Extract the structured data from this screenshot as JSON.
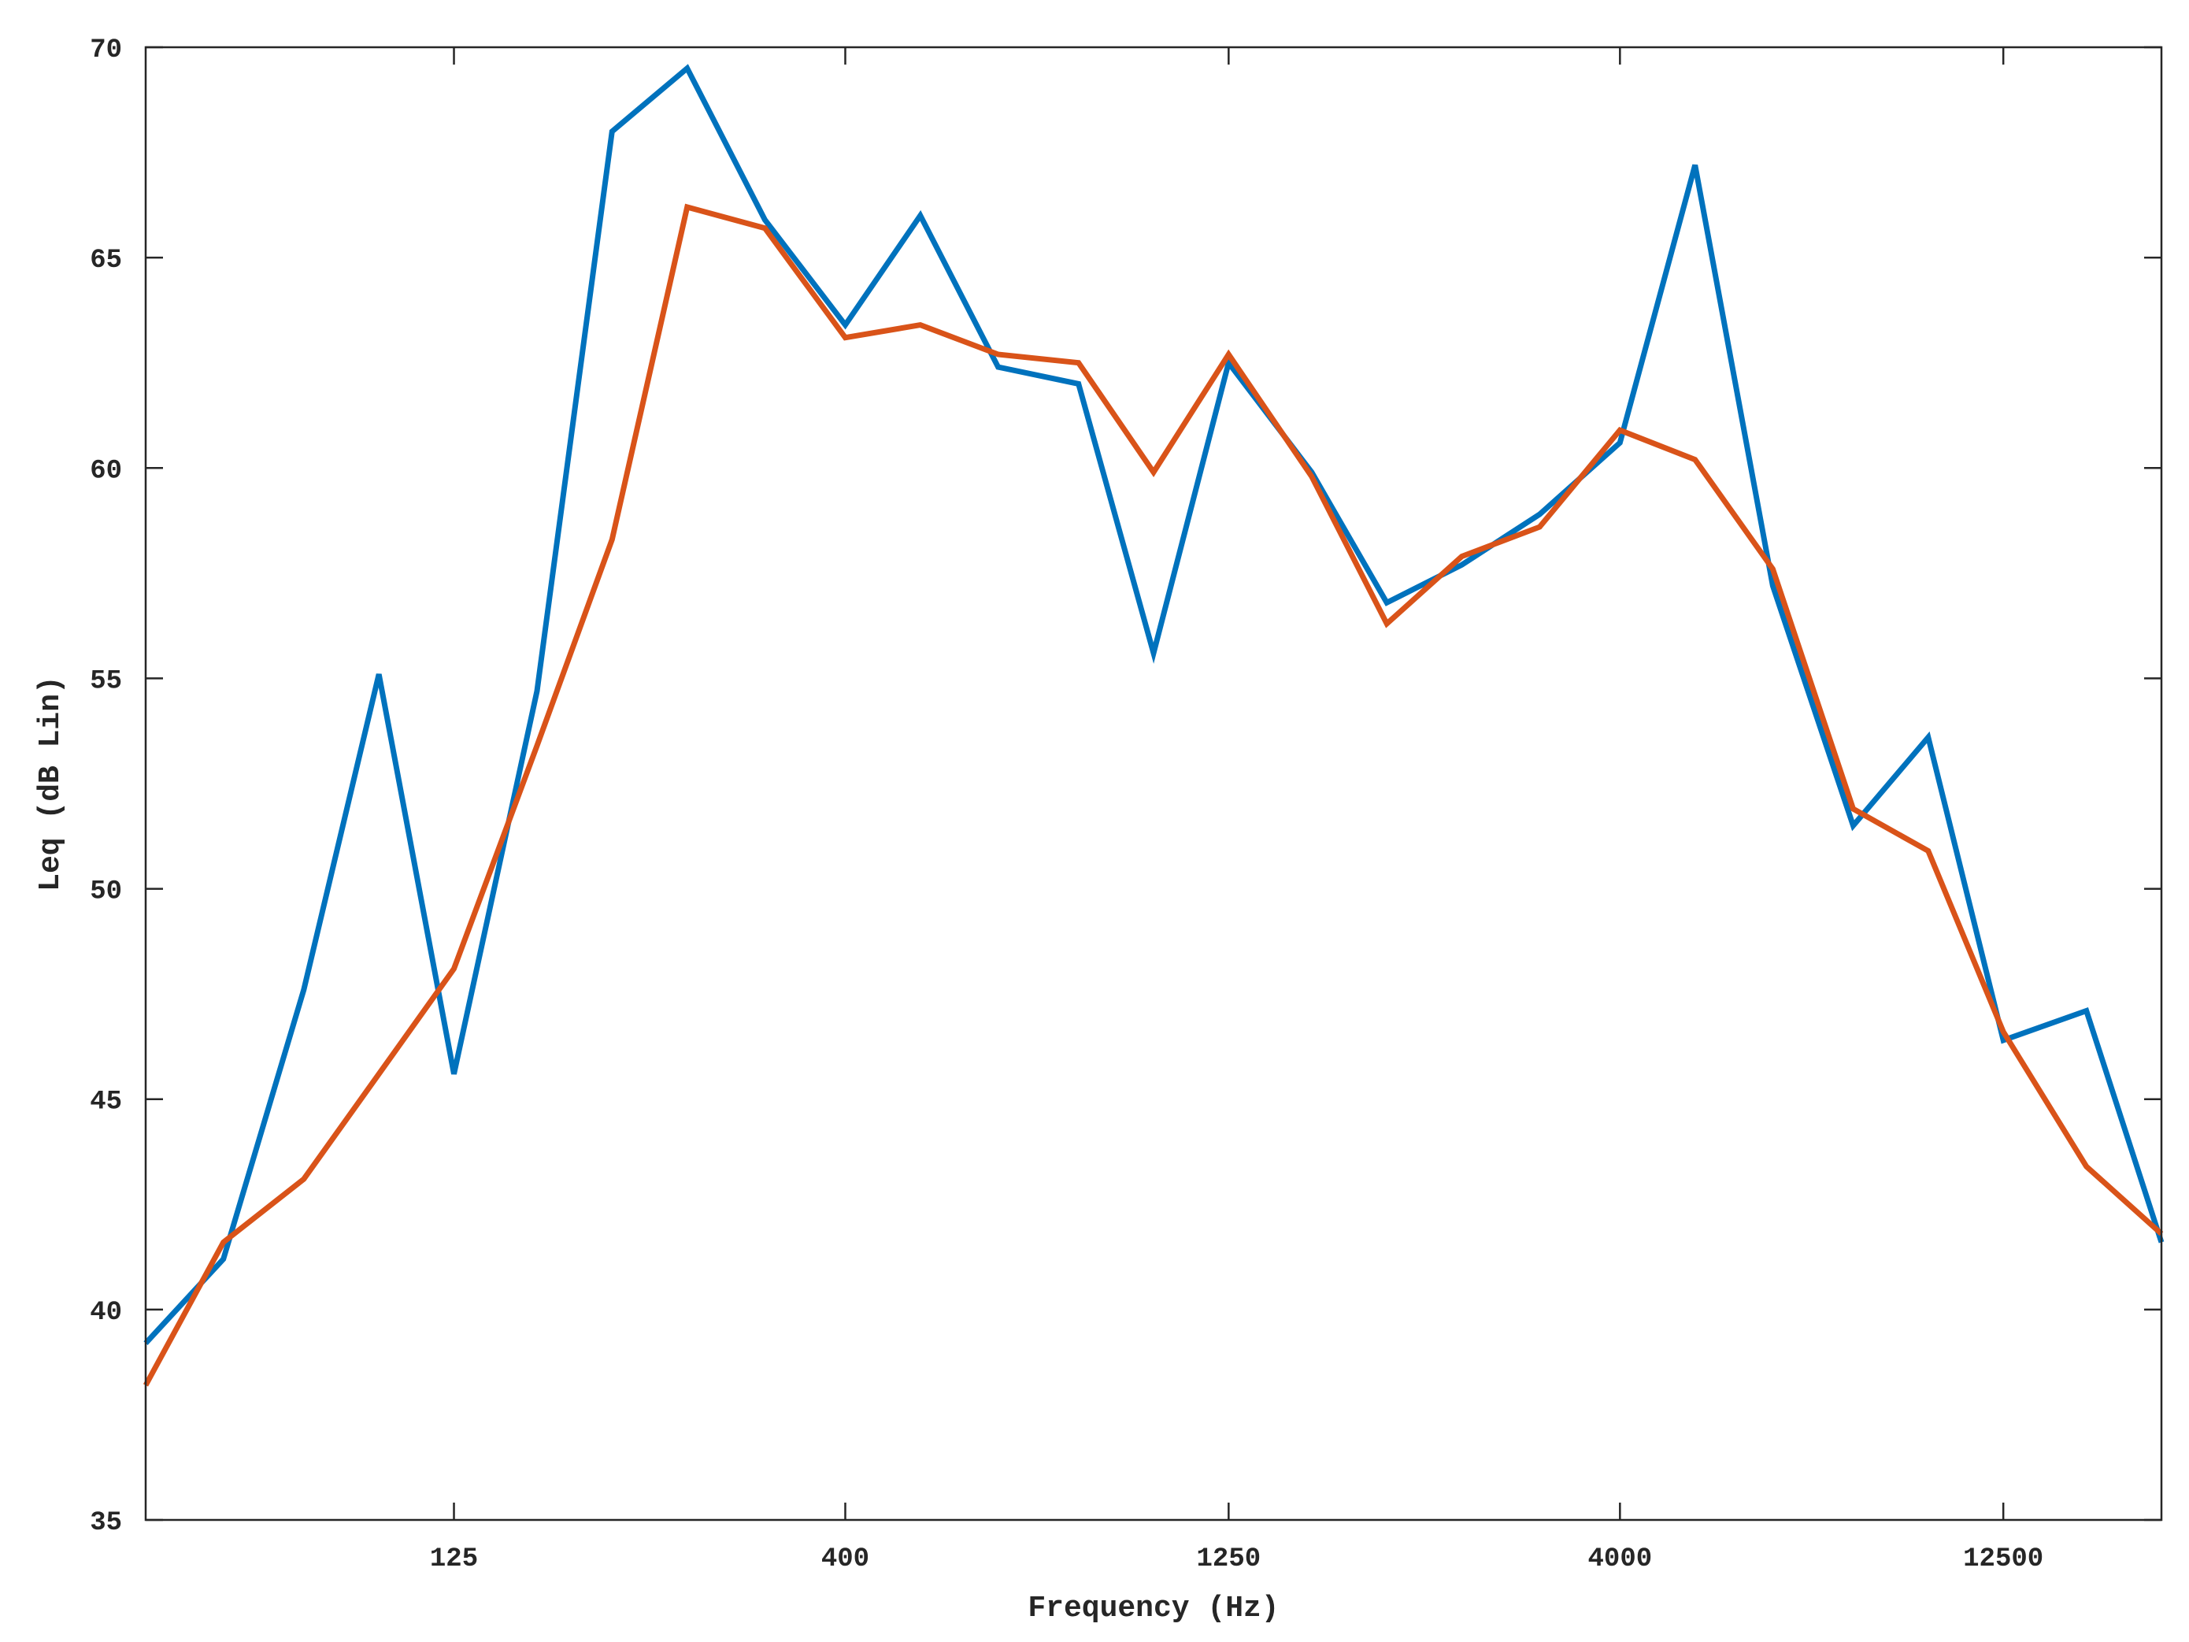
{
  "chart_data": {
    "type": "line",
    "title": "",
    "xlabel": "Frequency (Hz)",
    "ylabel": "Leq (dB Lin)",
    "x_scale": "log",
    "xlim": [
      50,
      20000
    ],
    "ylim": [
      35,
      70
    ],
    "x_ticks": [
      {
        "value": 125,
        "label": "125"
      },
      {
        "value": 400,
        "label": "400"
      },
      {
        "value": 1250,
        "label": "1250"
      },
      {
        "value": 4000,
        "label": "4000"
      },
      {
        "value": 12500,
        "label": "12500"
      }
    ],
    "y_ticks": [
      {
        "value": 35,
        "label": "35"
      },
      {
        "value": 40,
        "label": "40"
      },
      {
        "value": 45,
        "label": "45"
      },
      {
        "value": 50,
        "label": "50"
      },
      {
        "value": 55,
        "label": "55"
      },
      {
        "value": 60,
        "label": "60"
      },
      {
        "value": 65,
        "label": "65"
      },
      {
        "value": 70,
        "label": "70"
      }
    ],
    "grid": false,
    "legend": "none",
    "x": [
      50,
      63,
      80,
      100,
      125,
      160,
      200,
      250,
      315,
      400,
      500,
      630,
      800,
      1000,
      1250,
      1600,
      2000,
      2500,
      3150,
      4000,
      5000,
      6300,
      8000,
      10000,
      12500,
      16000,
      20000
    ],
    "series": [
      {
        "color": "#0072BD",
        "values": [
          39.2,
          41.2,
          47.6,
          55.1,
          45.6,
          54.7,
          68.0,
          69.5,
          65.9,
          63.4,
          66.0,
          62.4,
          62.0,
          55.6,
          62.5,
          59.9,
          56.8,
          57.7,
          58.9,
          60.6,
          67.2,
          57.2,
          51.5,
          53.6,
          46.4,
          47.1,
          41.6
        ]
      },
      {
        "color": "#D95319",
        "values": [
          38.2,
          41.6,
          43.1,
          45.6,
          48.1,
          53.4,
          58.3,
          66.2,
          65.7,
          63.1,
          63.4,
          62.7,
          62.5,
          59.9,
          62.7,
          59.8,
          56.3,
          57.9,
          58.6,
          60.9,
          60.2,
          57.6,
          51.9,
          50.9,
          46.6,
          43.4,
          41.8
        ]
      }
    ]
  }
}
